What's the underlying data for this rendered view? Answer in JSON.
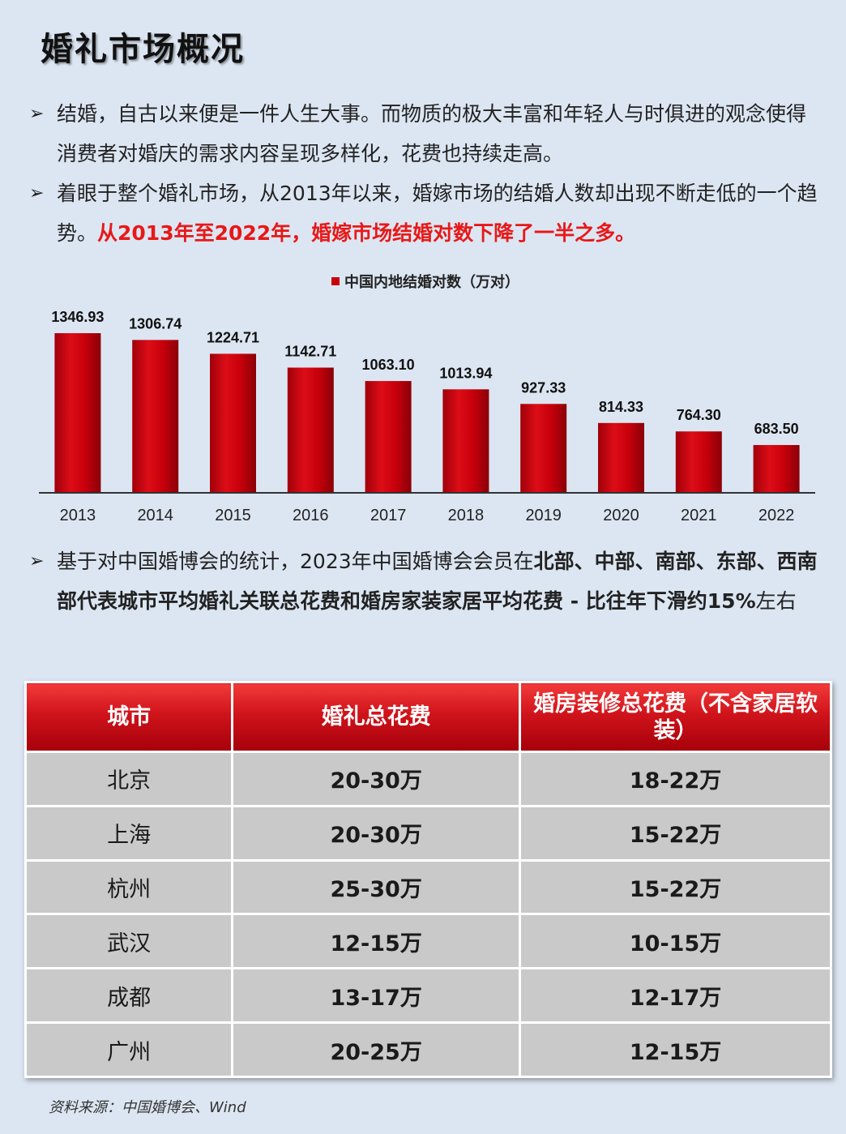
{
  "title": "婚礼市场概况",
  "bullet_glyph": "➢",
  "paragraph1": "结婚，自古以来便是一件人生大事。而物质的极大丰富和年轻人与时俱进的观念使得消费者对婚庆的需求内容呈现多样化，花费也持续走高。",
  "paragraph2": {
    "normal": "着眼于整个婚礼市场，从2013年以来，婚嫁市场的结婚人数却出现不断走低的一个趋势。",
    "highlight": "从2013年至2022年，婚嫁市场结婚对数下降了一半之多。"
  },
  "paragraph3": {
    "part1": "基于对中国婚博会的统计，2023年中国婚博会会员在",
    "part2_bold": "北部、中部、南部、东部、西南部代表城市平均婚礼关联总花费和婚房家装家居平均花费 - 比往年下滑约15%",
    "part3": "左右"
  },
  "chart_data": {
    "type": "bar",
    "legend": "中国内地结婚对数（万对）",
    "categories": [
      "2013",
      "2014",
      "2015",
      "2016",
      "2017",
      "2018",
      "2019",
      "2020",
      "2021",
      "2022"
    ],
    "series": [
      {
        "name": "中国内地结婚对数（万对）",
        "values": [
          1346.93,
          1306.74,
          1224.71,
          1142.71,
          1063.1,
          1013.94,
          927.33,
          814.33,
          764.3,
          683.5
        ],
        "labels": [
          "1346.93",
          "1306.74",
          "1224.71",
          "1142.71",
          "1063.10",
          "1013.94",
          "927.33",
          "814.33",
          "764.30",
          "683.50"
        ]
      }
    ],
    "ylim": [
      0,
      1400
    ],
    "grid": false,
    "legend_position": "top",
    "bar_color": "#c8000b"
  },
  "table": {
    "headers": [
      "城市",
      "婚礼总花费",
      "婚房装修总花费（不含家居软装）"
    ],
    "rows": [
      [
        "北京",
        "20-30万",
        "18-22万"
      ],
      [
        "上海",
        "20-30万",
        "15-22万"
      ],
      [
        "杭州",
        "25-30万",
        "15-22万"
      ],
      [
        "武汉",
        "12-15万",
        "10-15万"
      ],
      [
        "成都",
        "13-17万",
        "12-17万"
      ],
      [
        "广州",
        "20-25万",
        "12-15万"
      ]
    ]
  },
  "source": "资料来源：中国婚博会、Wind"
}
